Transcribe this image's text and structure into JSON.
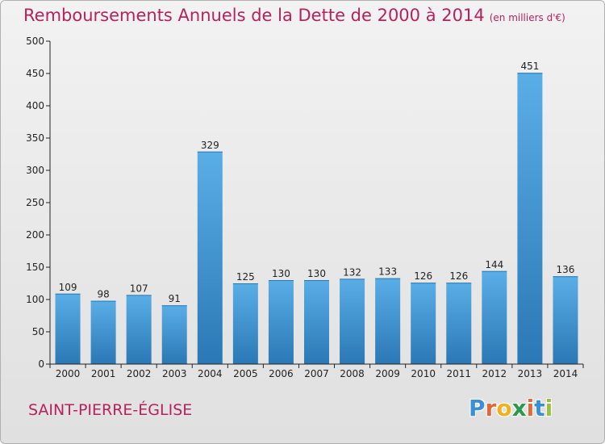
{
  "chart_data": {
    "type": "bar",
    "title": "Remboursements Annuels de la Dette de 2000 à 2014",
    "unit": "(en milliers d'€)",
    "categories": [
      "2000",
      "2001",
      "2002",
      "2003",
      "2004",
      "2005",
      "2006",
      "2007",
      "2008",
      "2009",
      "2010",
      "2011",
      "2012",
      "2013",
      "2014"
    ],
    "values": [
      109,
      98,
      107,
      91,
      329,
      125,
      130,
      130,
      132,
      133,
      126,
      126,
      144,
      451,
      136
    ],
    "ylim": [
      0,
      500
    ],
    "yticks": [
      0,
      50,
      100,
      150,
      200,
      250,
      300,
      350,
      400,
      450,
      500
    ],
    "grid": false,
    "bar_color_top": "#5aaee6",
    "bar_color_bottom": "#2a78b5"
  },
  "location": "SAINT-PIERRE-ÉGLISE",
  "logo": {
    "letters": [
      "P",
      "r",
      "o",
      "x",
      "i",
      "t",
      "i"
    ],
    "colors": [
      "#3a8fd6",
      "#e0683a",
      "#f0b020",
      "#2a9a4a",
      "#e0683a",
      "#3a8fd6",
      "#9ac040"
    ]
  },
  "colors": {
    "title": "#b5225d",
    "axis": "#222222"
  }
}
